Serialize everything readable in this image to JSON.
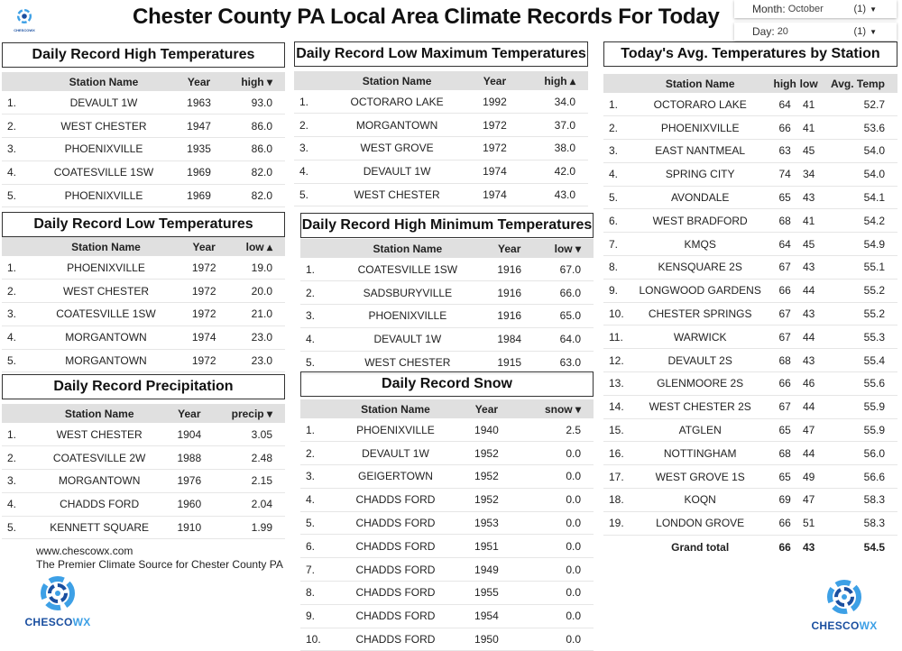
{
  "header": {
    "title": "Chester County PA Local Area Climate Records For Today",
    "month": {
      "label": "Month:",
      "value": "October",
      "count": "(1)"
    },
    "day": {
      "label": "Day:",
      "value": "20",
      "count": "(1)"
    }
  },
  "logo": {
    "text_a": "CHESCO",
    "text_b": "WX"
  },
  "tables": {
    "high": {
      "title": "Daily Record High Temperatures",
      "cols": [
        "Station Name",
        "Year",
        "high ▾"
      ],
      "rows": [
        [
          "1.",
          "DEVAULT 1W",
          "1963",
          "93.0"
        ],
        [
          "2.",
          "WEST CHESTER",
          "1947",
          "86.0"
        ],
        [
          "3.",
          "PHOENIXVILLE",
          "1935",
          "86.0"
        ],
        [
          "4.",
          "COATESVILLE 1SW",
          "1969",
          "82.0"
        ],
        [
          "5.",
          "PHOENIXVILLE",
          "1969",
          "82.0"
        ]
      ]
    },
    "lowmax": {
      "title": "Daily Record Low Maximum Temperatures",
      "cols": [
        "Station Name",
        "Year",
        "high ▴"
      ],
      "rows": [
        [
          "1.",
          "OCTORARO LAKE",
          "1992",
          "34.0"
        ],
        [
          "2.",
          "MORGANTOWN",
          "1972",
          "37.0"
        ],
        [
          "3.",
          "WEST GROVE",
          "1972",
          "38.0"
        ],
        [
          "4.",
          "DEVAULT 1W",
          "1974",
          "42.0"
        ],
        [
          "5.",
          "WEST CHESTER",
          "1974",
          "43.0"
        ]
      ]
    },
    "low": {
      "title": "Daily Record Low Temperatures",
      "cols": [
        "Station Name",
        "Year",
        "low ▴"
      ],
      "rows": [
        [
          "1.",
          "PHOENIXVILLE",
          "1972",
          "19.0"
        ],
        [
          "2.",
          "WEST CHESTER",
          "1972",
          "20.0"
        ],
        [
          "3.",
          "COATESVILLE 1SW",
          "1972",
          "21.0"
        ],
        [
          "4.",
          "MORGANTOWN",
          "1974",
          "23.0"
        ],
        [
          "5.",
          "MORGANTOWN",
          "1972",
          "23.0"
        ]
      ]
    },
    "highmin": {
      "title": "Daily Record High Minimum Temperatures",
      "cols": [
        "Station Name",
        "Year",
        "low ▾"
      ],
      "rows": [
        [
          "1.",
          "COATESVILLE 1SW",
          "1916",
          "67.0"
        ],
        [
          "2.",
          "SADSBURYVILLE",
          "1916",
          "66.0"
        ],
        [
          "3.",
          "PHOENIXVILLE",
          "1916",
          "65.0"
        ],
        [
          "4.",
          "DEVAULT 1W",
          "1984",
          "64.0"
        ],
        [
          "5.",
          "WEST CHESTER",
          "1915",
          "63.0"
        ]
      ]
    },
    "precip": {
      "title": "Daily Record Precipitation",
      "cols": [
        "Station Name",
        "Year",
        "precip ▾"
      ],
      "rows": [
        [
          "1.",
          "WEST CHESTER",
          "1904",
          "3.05"
        ],
        [
          "2.",
          "COATESVILLE 2W",
          "1988",
          "2.48"
        ],
        [
          "3.",
          "MORGANTOWN",
          "1976",
          "2.15"
        ],
        [
          "4.",
          "CHADDS FORD",
          "1960",
          "2.04"
        ],
        [
          "5.",
          "KENNETT SQUARE",
          "1910",
          "1.99"
        ]
      ]
    },
    "snow": {
      "title": "Daily Record Snow",
      "cols": [
        "Station Name",
        "Year",
        "snow ▾"
      ],
      "rows": [
        [
          "1.",
          "PHOENIXVILLE",
          "1940",
          "2.5"
        ],
        [
          "2.",
          "DEVAULT 1W",
          "1952",
          "0.0"
        ],
        [
          "3.",
          "GEIGERTOWN",
          "1952",
          "0.0"
        ],
        [
          "4.",
          "CHADDS FORD",
          "1952",
          "0.0"
        ],
        [
          "5.",
          "CHADDS FORD",
          "1953",
          "0.0"
        ],
        [
          "6.",
          "CHADDS FORD",
          "1951",
          "0.0"
        ],
        [
          "7.",
          "CHADDS FORD",
          "1949",
          "0.0"
        ],
        [
          "8.",
          "CHADDS FORD",
          "1955",
          "0.0"
        ],
        [
          "9.",
          "CHADDS FORD",
          "1954",
          "0.0"
        ],
        [
          "10.",
          "CHADDS FORD",
          "1950",
          "0.0"
        ]
      ]
    },
    "avg": {
      "title": "Today's Avg. Temperatures by Station",
      "cols": [
        "Station Name",
        "high",
        "low",
        "Avg. Temp"
      ],
      "rows": [
        [
          "1.",
          "OCTORARO LAKE",
          "64",
          "41",
          "52.7"
        ],
        [
          "2.",
          "PHOENIXVILLE",
          "66",
          "41",
          "53.6"
        ],
        [
          "3.",
          "EAST NANTMEAL",
          "63",
          "45",
          "54.0"
        ],
        [
          "4.",
          "SPRING CITY",
          "74",
          "34",
          "54.0"
        ],
        [
          "5.",
          "AVONDALE",
          "65",
          "43",
          "54.1"
        ],
        [
          "6.",
          "WEST BRADFORD",
          "68",
          "41",
          "54.2"
        ],
        [
          "7.",
          "KMQS",
          "64",
          "45",
          "54.9"
        ],
        [
          "8.",
          "KENSQUARE 2S",
          "67",
          "43",
          "55.1"
        ],
        [
          "9.",
          "LONGWOOD GARDENS",
          "66",
          "44",
          "55.2"
        ],
        [
          "10.",
          "CHESTER SPRINGS",
          "67",
          "43",
          "55.2"
        ],
        [
          "11.",
          "WARWICK",
          "67",
          "44",
          "55.3"
        ],
        [
          "12.",
          "DEVAULT 2S",
          "68",
          "43",
          "55.4"
        ],
        [
          "13.",
          "GLENMOORE 2S",
          "66",
          "46",
          "55.6"
        ],
        [
          "14.",
          "WEST CHESTER 2S",
          "67",
          "44",
          "55.9"
        ],
        [
          "15.",
          "ATGLEN",
          "65",
          "47",
          "55.9"
        ],
        [
          "16.",
          "NOTTINGHAM",
          "68",
          "44",
          "56.0"
        ],
        [
          "17.",
          "WEST GROVE 1S",
          "65",
          "49",
          "56.6"
        ],
        [
          "18.",
          "KOQN",
          "69",
          "47",
          "58.3"
        ],
        [
          "19.",
          "LONDON GROVE",
          "66",
          "51",
          "58.3"
        ]
      ],
      "total": [
        "Grand total",
        "66",
        "43",
        "54.5"
      ]
    }
  },
  "footer": {
    "url": "www.chescowx.com",
    "tagline": "The Premier Climate Source for Chester County PA"
  }
}
